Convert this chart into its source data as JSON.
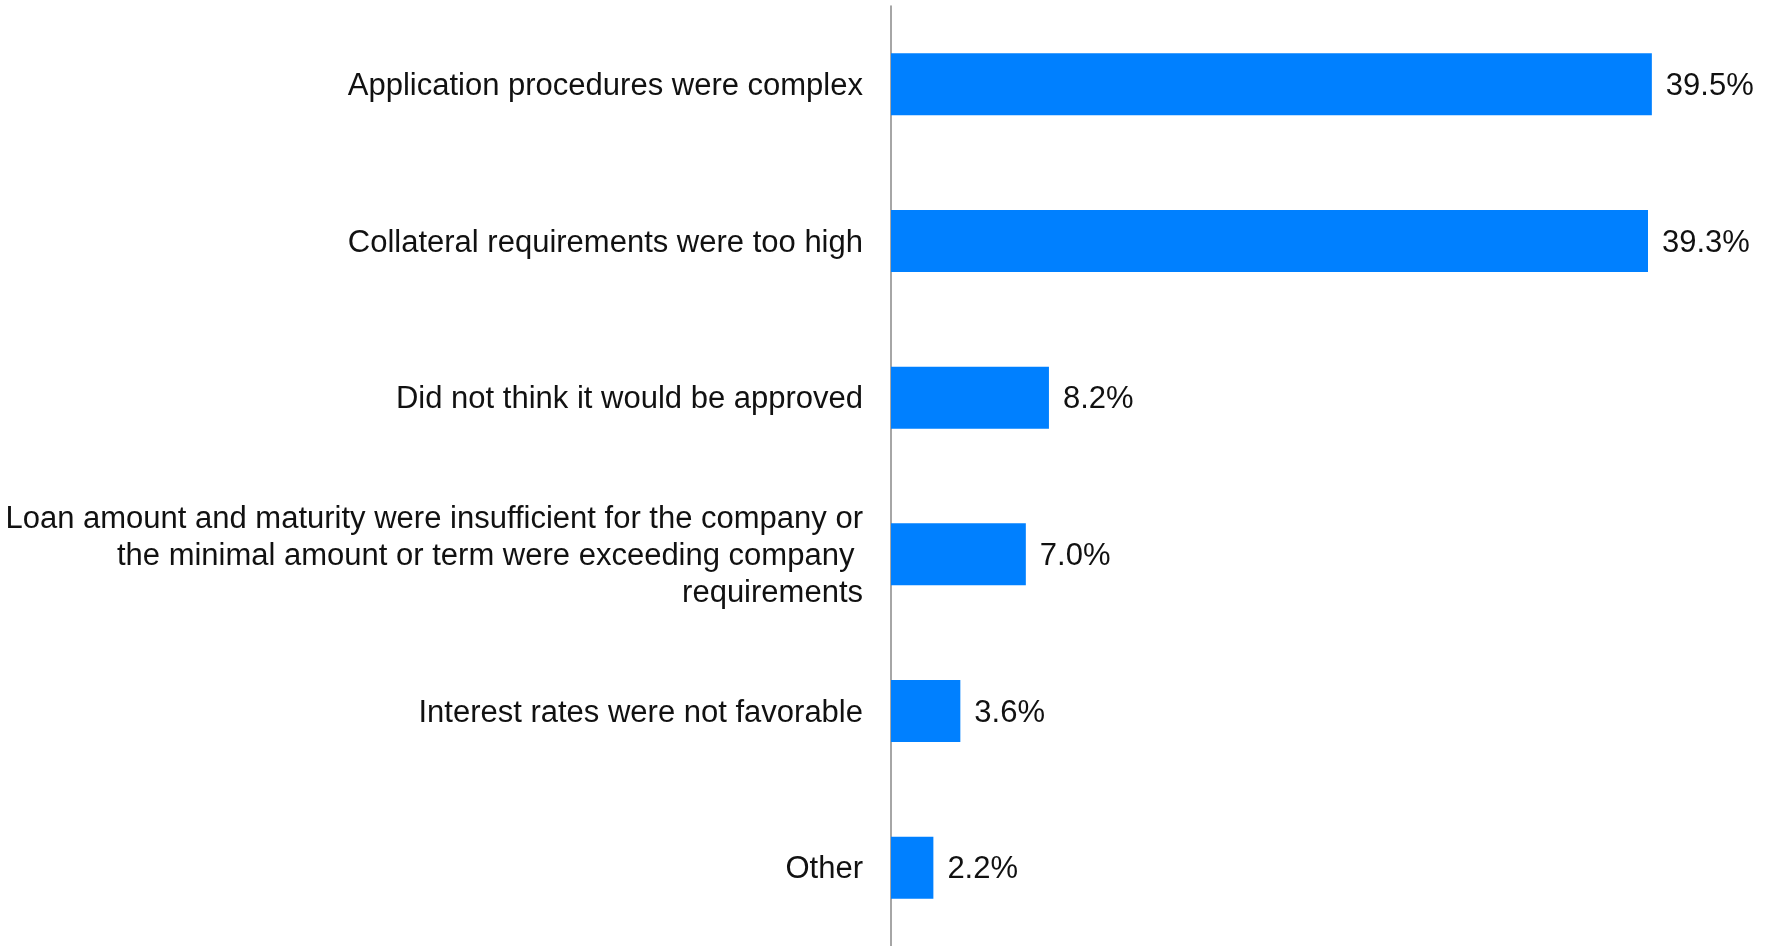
{
  "chart_data": {
    "type": "bar",
    "orientation": "horizontal",
    "categories": [
      "Application procedures were complex",
      "Collateral requirements were too high",
      "Did not think it would be approved",
      "Loan amount and maturity were insufficient for the company or the minimal amount or term were exceeding company requirements",
      "Interest rates were not favorable",
      "Other"
    ],
    "values": [
      39.5,
      39.3,
      8.2,
      7.0,
      3.6,
      2.2
    ],
    "value_labels": [
      "39.5%",
      "39.3%",
      "8.2%",
      "7.0%",
      "3.6%",
      "2.2%"
    ],
    "color": "#0080ff"
  }
}
